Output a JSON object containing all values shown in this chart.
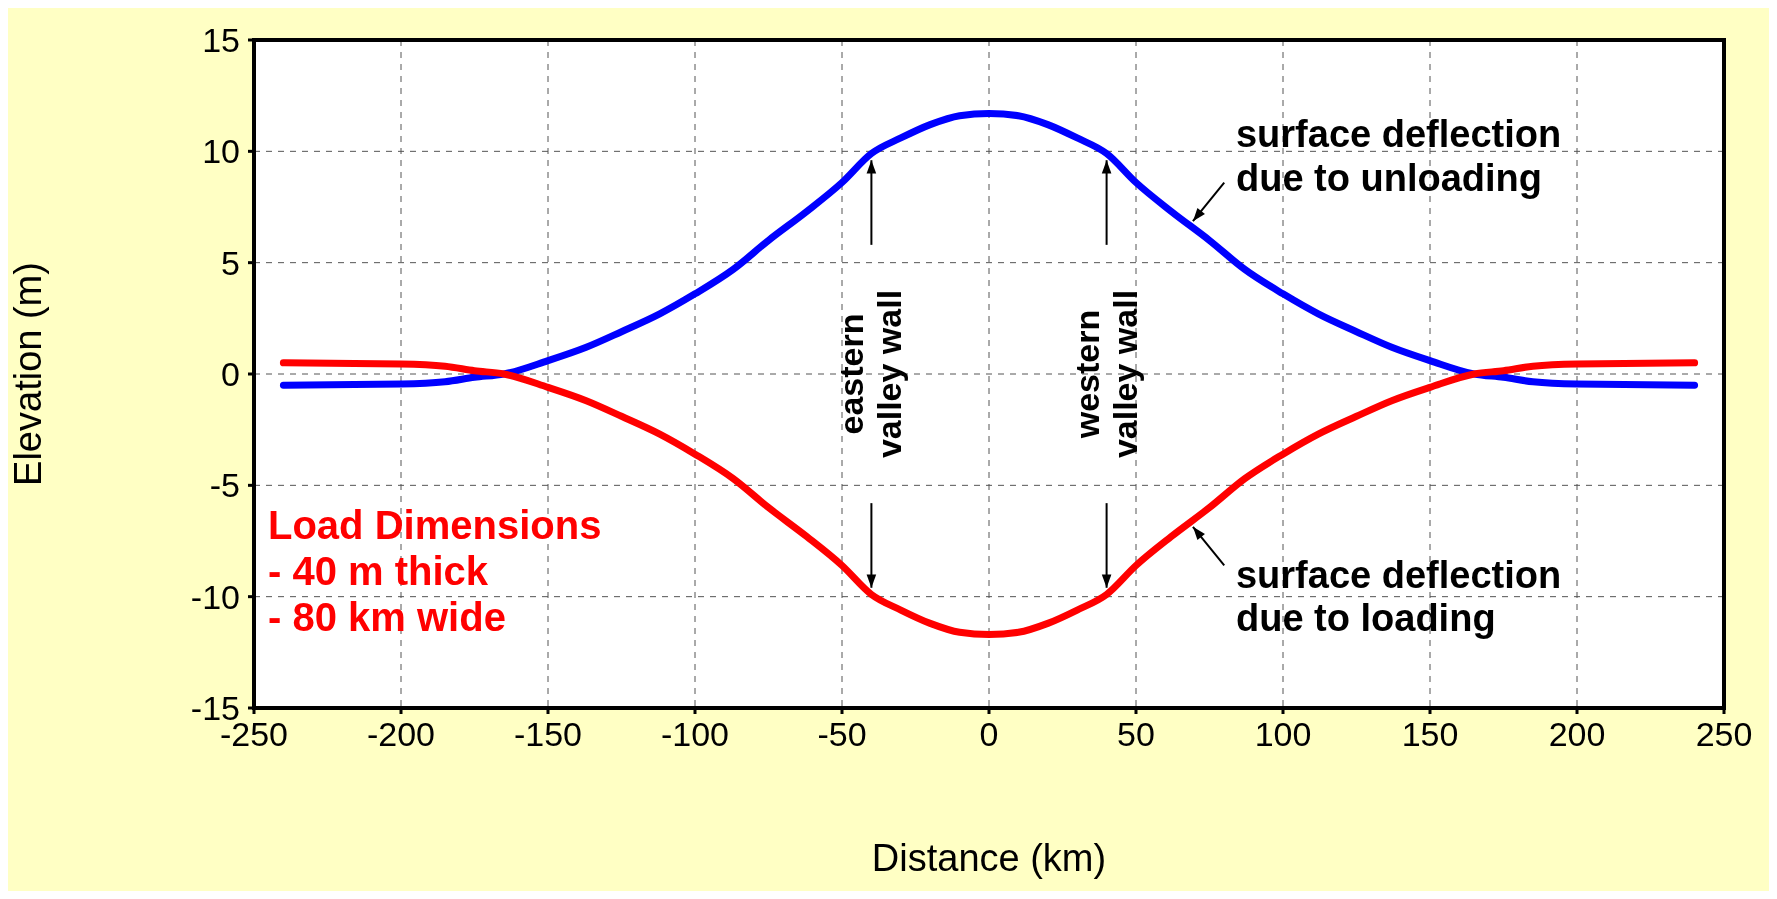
{
  "chart_data": {
    "type": "line",
    "xlabel": "Distance (km)",
    "ylabel": "Elevation (m)",
    "x": [
      -240,
      -200,
      -185,
      -175,
      -165,
      -150,
      -137,
      -125,
      -112,
      -100,
      -87,
      -75,
      -62,
      -50,
      -40,
      -30,
      -20,
      -10,
      0,
      10,
      20,
      30,
      40,
      50,
      62,
      75,
      87,
      100,
      112,
      125,
      137,
      150,
      165,
      175,
      185,
      200,
      240
    ],
    "series": [
      {
        "color": "#0000ff",
        "values": [
          -0.5,
          -0.45,
          -0.35,
          -0.15,
          0,
          0.6,
          1.2,
          1.9,
          2.7,
          3.6,
          4.7,
          6.0,
          7.3,
          8.6,
          9.9,
          10.6,
          11.2,
          11.6,
          11.7,
          11.6,
          11.2,
          10.6,
          9.9,
          8.6,
          7.3,
          6.0,
          4.7,
          3.6,
          2.7,
          1.9,
          1.2,
          0.6,
          0,
          -0.15,
          -0.35,
          -0.45,
          -0.5
        ]
      },
      {
        "color": "#ff0000",
        "values": [
          0.5,
          0.45,
          0.35,
          0.15,
          0,
          -0.6,
          -1.2,
          -1.9,
          -2.7,
          -3.6,
          -4.7,
          -6.0,
          -7.3,
          -8.6,
          -9.9,
          -10.6,
          -11.2,
          -11.6,
          -11.7,
          -11.6,
          -11.2,
          -10.6,
          -9.9,
          -8.6,
          -7.3,
          -6.0,
          -4.7,
          -3.6,
          -2.7,
          -1.9,
          -1.2,
          -0.6,
          0,
          0.15,
          0.35,
          0.45,
          0.5
        ]
      }
    ],
    "xlim": [
      -250,
      250
    ],
    "xticks": [
      -250,
      -200,
      -150,
      -100,
      -50,
      0,
      50,
      100,
      150,
      200,
      250
    ],
    "ylim": [
      -15,
      15
    ],
    "yticks": [
      -15,
      -10,
      -5,
      0,
      5,
      10,
      15
    ],
    "grid": true,
    "marker": "none",
    "line_style": "solid",
    "annotations": [
      {
        "text": "surface deflection\ndue to unloading",
        "x": 68,
        "y": 7
      },
      {
        "text": "surface deflection\ndue to loading",
        "x": 68,
        "y": -7
      },
      "eastern\nvalley wall",
      "western\nvalley wall",
      "Load Dimensions\n- 40 m thick\n- 80 km wide"
    ]
  }
}
